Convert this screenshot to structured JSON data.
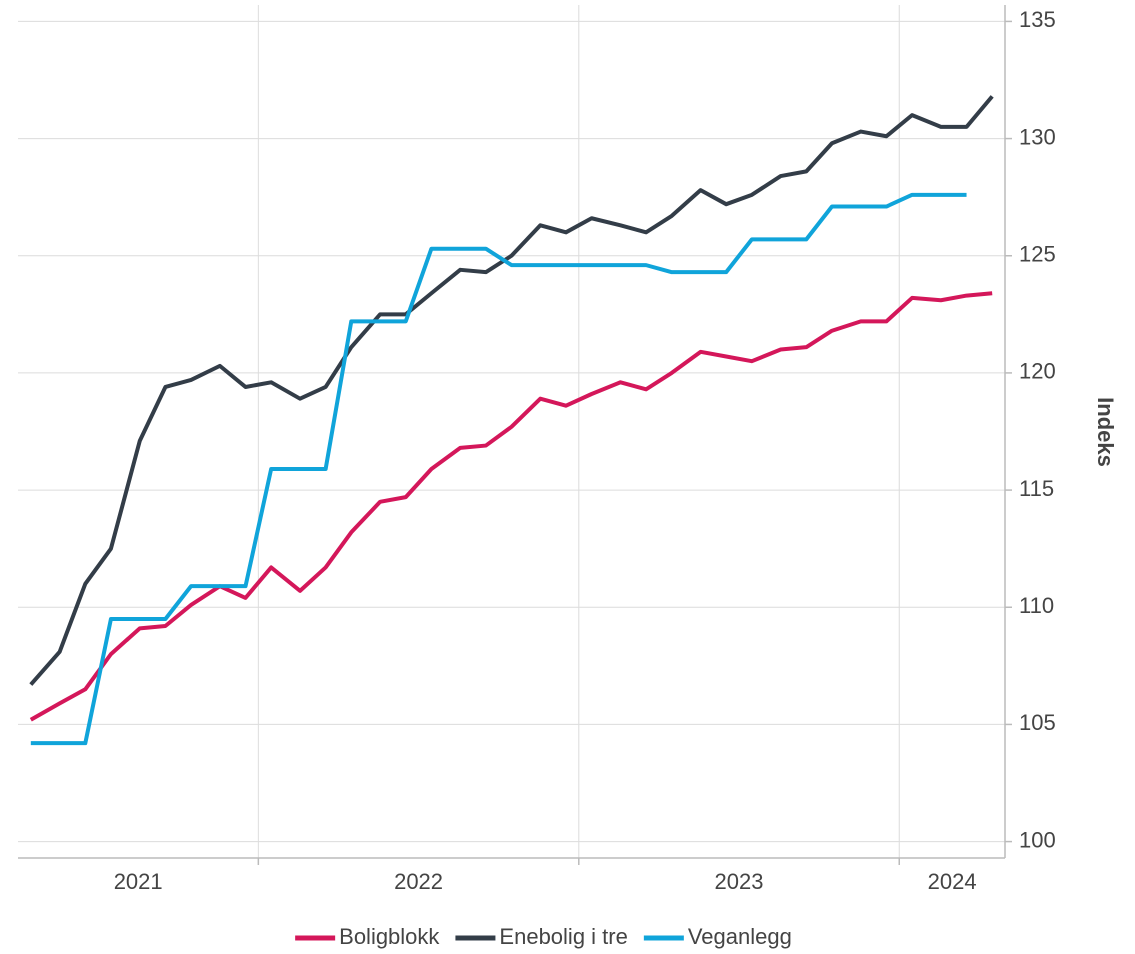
{
  "chart_data": {
    "type": "line",
    "y_label": "Indeks",
    "x": [
      2021.29,
      2021.38,
      2021.46,
      2021.54,
      2021.63,
      2021.71,
      2021.79,
      2021.88,
      2021.96,
      2022.04,
      2022.13,
      2022.21,
      2022.29,
      2022.38,
      2022.46,
      2022.54,
      2022.63,
      2022.71,
      2022.79,
      2022.88,
      2022.96,
      2023.04,
      2023.13,
      2023.21,
      2023.29,
      2023.38,
      2023.46,
      2023.54,
      2023.63,
      2023.71,
      2023.79,
      2023.88,
      2023.96,
      2024.04,
      2024.13,
      2024.21,
      2024.29
    ],
    "xlim": [
      2021.25,
      2024.33
    ],
    "xticks": [
      2022,
      2023,
      2024
    ],
    "year_labels": [
      "2021",
      "2022",
      "2023",
      "2024"
    ],
    "ylim": [
      99.3,
      135.7
    ],
    "yticks": [
      100,
      105,
      110,
      115,
      120,
      125,
      130,
      135
    ],
    "grid": true,
    "legend": "bottom",
    "series": [
      {
        "name": "Boligblokk",
        "color": "#d4175a",
        "values": [
          105.2,
          105.9,
          106.5,
          108.0,
          109.1,
          109.2,
          110.1,
          110.9,
          110.4,
          111.7,
          110.7,
          111.7,
          113.2,
          114.5,
          114.7,
          115.9,
          116.8,
          116.9,
          117.7,
          118.9,
          118.6,
          119.1,
          119.6,
          119.3,
          120.0,
          120.9,
          120.7,
          120.5,
          121.0,
          121.1,
          121.8,
          122.2,
          122.2,
          123.2,
          123.1,
          123.3,
          123.4
        ]
      },
      {
        "name": "Enebolig i tre",
        "color": "#333d48",
        "values": [
          106.7,
          108.1,
          111.0,
          112.5,
          117.1,
          119.4,
          119.7,
          120.3,
          119.4,
          119.6,
          118.9,
          119.4,
          121.1,
          122.5,
          122.5,
          123.4,
          124.4,
          124.3,
          125.0,
          126.3,
          126.0,
          126.6,
          126.3,
          126.0,
          126.7,
          127.8,
          127.2,
          127.6,
          128.4,
          128.6,
          129.8,
          130.3,
          130.1,
          131.0,
          130.5,
          130.5,
          131.8
        ]
      },
      {
        "name": "Veganlegg",
        "color": "#10a4da",
        "values": [
          104.2,
          104.2,
          104.2,
          109.5,
          109.5,
          109.5,
          110.9,
          110.9,
          110.9,
          115.9,
          115.9,
          115.9,
          122.2,
          122.2,
          122.2,
          125.3,
          125.3,
          125.3,
          124.6,
          124.6,
          124.6,
          124.6,
          124.6,
          124.6,
          124.3,
          124.3,
          124.3,
          125.7,
          125.7,
          125.7,
          127.1,
          127.1,
          127.1,
          127.6,
          127.6,
          127.6,
          null
        ]
      }
    ]
  }
}
